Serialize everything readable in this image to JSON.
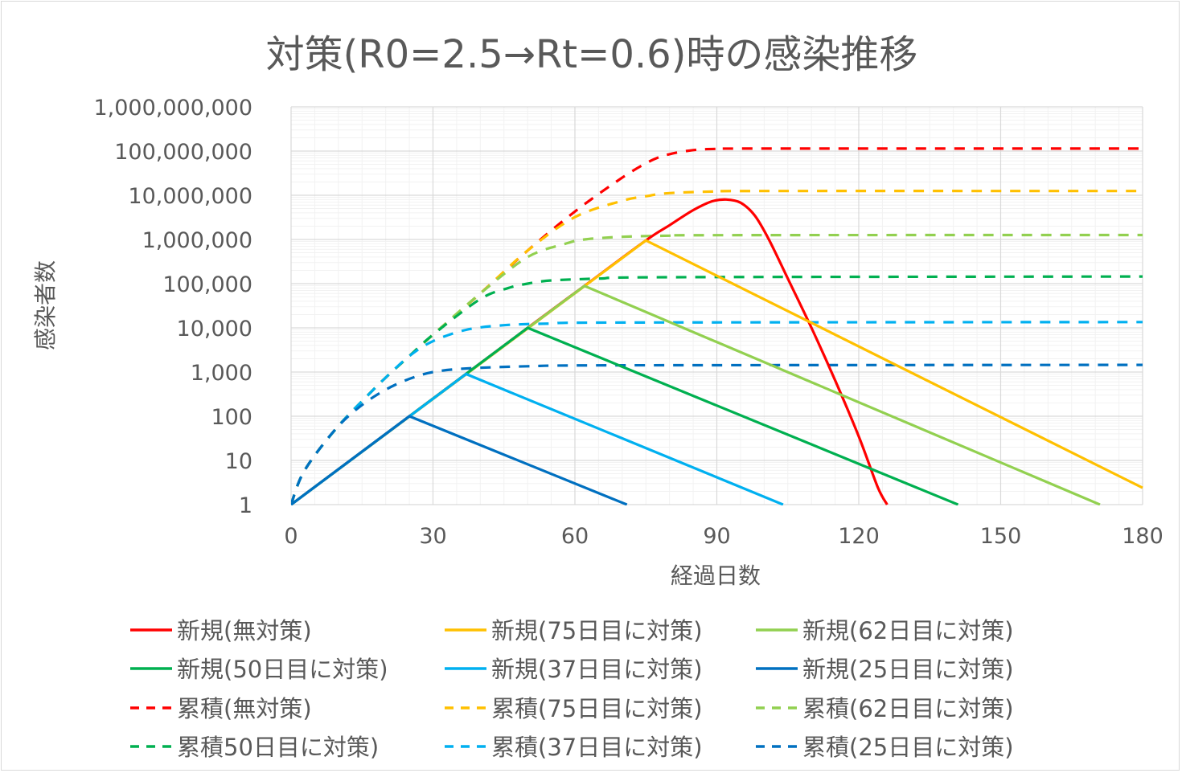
{
  "chart_data": {
    "type": "line",
    "title": "対策(R0=2.5→Rt=0.6)時の感染推移",
    "xlabel": "経過日数",
    "ylabel": "感染者数",
    "xlim": [
      0,
      180
    ],
    "ylim": [
      1,
      1000000000
    ],
    "y_scale": "log",
    "grid": true,
    "legend_position": "bottom",
    "x_ticks": [
      "0",
      "30",
      "60",
      "90",
      "120",
      "150",
      "180"
    ],
    "y_ticks": [
      "1",
      "10",
      "100",
      "1,000",
      "10,000",
      "100,000",
      "1,000,000",
      "10,000,000",
      "100,000,000",
      "1,000,000,000"
    ],
    "series": [
      {
        "name": "新規(無対策)",
        "color": "#ff0000",
        "dash": false,
        "points": [
          [
            0,
            1
          ],
          [
            25,
            100
          ],
          [
            50,
            10000
          ],
          [
            62,
            89000
          ],
          [
            75,
            950000
          ],
          [
            80,
            2100000
          ],
          [
            85,
            4600000
          ],
          [
            89,
            7300000
          ],
          [
            92,
            8000000
          ],
          [
            95,
            6800000
          ],
          [
            98,
            3500000
          ],
          [
            101,
            1000000
          ],
          [
            105,
            130000
          ],
          [
            110,
            10000
          ],
          [
            115,
            650
          ],
          [
            120,
            35
          ],
          [
            124,
            2.5
          ],
          [
            126,
            1
          ]
        ]
      },
      {
        "name": "新規(75日目に対策)",
        "color": "#ffc000",
        "dash": false,
        "points": [
          [
            0,
            1
          ],
          [
            75,
            950000
          ],
          [
            180,
            2.4
          ]
        ]
      },
      {
        "name": "新規(62日目に対策)",
        "color": "#92d050",
        "dash": false,
        "points": [
          [
            0,
            1
          ],
          [
            62,
            89000
          ],
          [
            171,
            1
          ]
        ]
      },
      {
        "name": "新規(50日目に対策)",
        "color": "#00b050",
        "dash": false,
        "points": [
          [
            0,
            1
          ],
          [
            50,
            10000
          ],
          [
            141,
            1
          ]
        ]
      },
      {
        "name": "新規(37日目に対策)",
        "color": "#00b0f0",
        "dash": false,
        "points": [
          [
            0,
            1
          ],
          [
            37,
            900
          ],
          [
            104,
            1
          ]
        ]
      },
      {
        "name": "新規(25日目に対策)",
        "color": "#0070c0",
        "dash": false,
        "points": [
          [
            0,
            1
          ],
          [
            25,
            100
          ],
          [
            71,
            1
          ]
        ]
      },
      {
        "name": "累積(無対策)",
        "color": "#ff0000",
        "dash": true,
        "points": [
          [
            0,
            1
          ],
          [
            2,
            4
          ],
          [
            5,
            13
          ],
          [
            10,
            60
          ],
          [
            15,
            220
          ],
          [
            20,
            750
          ],
          [
            25,
            2300
          ],
          [
            30,
            7000
          ],
          [
            40,
            60000
          ],
          [
            50,
            560000
          ],
          [
            60,
            4300000
          ],
          [
            70,
            25000000
          ],
          [
            76,
            60000000
          ],
          [
            80,
            85000000
          ],
          [
            85,
            105000000
          ],
          [
            90,
            112000000
          ],
          [
            100,
            114000000
          ],
          [
            180,
            114000000
          ]
        ]
      },
      {
        "name": "累積(75日目に対策)",
        "color": "#ffc000",
        "dash": true,
        "points": [
          [
            0,
            1
          ],
          [
            2,
            4
          ],
          [
            5,
            13
          ],
          [
            10,
            60
          ],
          [
            15,
            220
          ],
          [
            20,
            750
          ],
          [
            25,
            2300
          ],
          [
            30,
            7000
          ],
          [
            40,
            60000
          ],
          [
            50,
            560000
          ],
          [
            60,
            3200000
          ],
          [
            70,
            7500000
          ],
          [
            75,
            9500000
          ],
          [
            80,
            11200000
          ],
          [
            90,
            12200000
          ],
          [
            100,
            12500000
          ],
          [
            180,
            12500000
          ]
        ]
      },
      {
        "name": "累積(62日目に対策)",
        "color": "#92d050",
        "dash": true,
        "points": [
          [
            0,
            1
          ],
          [
            2,
            4
          ],
          [
            5,
            13
          ],
          [
            10,
            60
          ],
          [
            15,
            220
          ],
          [
            20,
            750
          ],
          [
            25,
            2300
          ],
          [
            30,
            7000
          ],
          [
            40,
            60000
          ],
          [
            50,
            400000
          ],
          [
            58,
            800000
          ],
          [
            62,
            1000000
          ],
          [
            70,
            1150000
          ],
          [
            80,
            1220000
          ],
          [
            90,
            1250000
          ],
          [
            180,
            1260000
          ]
        ]
      },
      {
        "name": "累積50日目に対策)",
        "color": "#00b050",
        "dash": true,
        "points": [
          [
            0,
            1
          ],
          [
            2,
            4
          ],
          [
            5,
            13
          ],
          [
            10,
            60
          ],
          [
            15,
            220
          ],
          [
            20,
            750
          ],
          [
            25,
            2300
          ],
          [
            30,
            7000
          ],
          [
            40,
            45000
          ],
          [
            46,
            80000
          ],
          [
            50,
            100000
          ],
          [
            55,
            118000
          ],
          [
            65,
            130000
          ],
          [
            80,
            140000
          ],
          [
            180,
            145000
          ]
        ]
      },
      {
        "name": "累積(37日目に対策)",
        "color": "#00b0f0",
        "dash": true,
        "points": [
          [
            0,
            1
          ],
          [
            2,
            4
          ],
          [
            5,
            13
          ],
          [
            10,
            60
          ],
          [
            15,
            220
          ],
          [
            20,
            750
          ],
          [
            25,
            2300
          ],
          [
            30,
            5000
          ],
          [
            37,
            9000
          ],
          [
            45,
            11500
          ],
          [
            55,
            12500
          ],
          [
            70,
            13200
          ],
          [
            180,
            13500
          ]
        ]
      },
      {
        "name": "累積(25日目に対策)",
        "color": "#0070c0",
        "dash": true,
        "points": [
          [
            0,
            1
          ],
          [
            2,
            4
          ],
          [
            5,
            13
          ],
          [
            10,
            60
          ],
          [
            15,
            180
          ],
          [
            20,
            400
          ],
          [
            25,
            700
          ],
          [
            30,
            1000
          ],
          [
            37,
            1200
          ],
          [
            50,
            1350
          ],
          [
            70,
            1420
          ],
          [
            180,
            1450
          ]
        ]
      }
    ]
  }
}
